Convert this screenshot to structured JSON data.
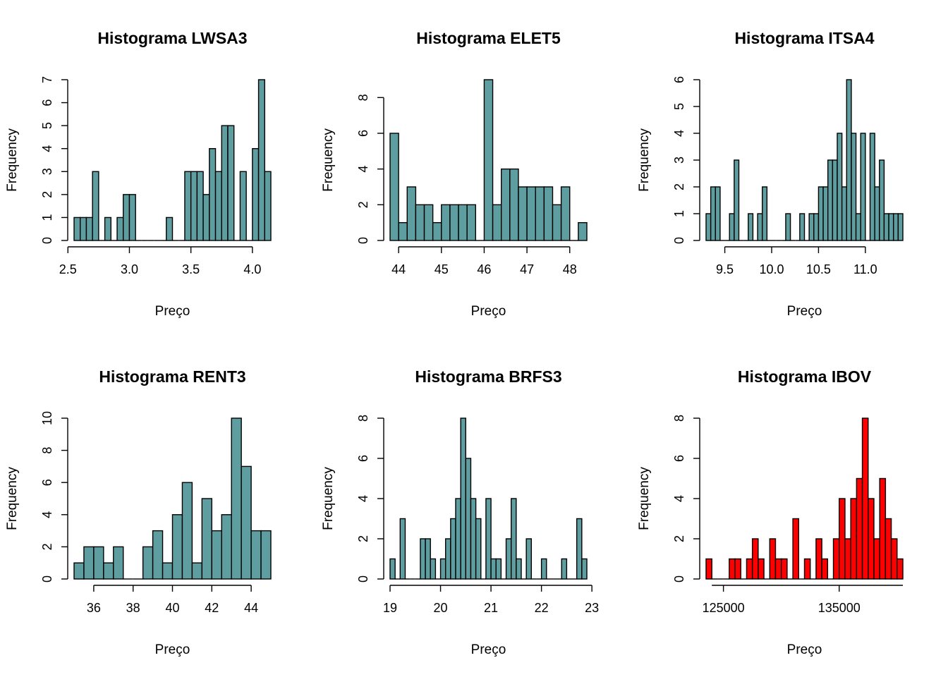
{
  "chart_data": [
    {
      "type": "histogram",
      "title": "Histograma LWSA3",
      "xlabel": "Preço",
      "ylabel": "Frequency",
      "fill_color": "#5F9EA0",
      "x_ticks": [
        "2.5",
        "3.0",
        "3.5",
        "4.0"
      ],
      "x_tick_values": [
        2.5,
        3.0,
        3.5,
        4.0
      ],
      "x_axis_range": [
        2.5,
        4.0
      ],
      "y_ticks": [
        "0",
        "1",
        "2",
        "3",
        "4",
        "5",
        "6",
        "7"
      ],
      "ylim": [
        0,
        7
      ],
      "bin_start": 2.55,
      "bin_width": 0.05,
      "counts": [
        1,
        1,
        1,
        3,
        0,
        1,
        0,
        1,
        2,
        2,
        0,
        0,
        0,
        0,
        0,
        1,
        0,
        0,
        3,
        3,
        3,
        2,
        4,
        3,
        5,
        5,
        0,
        3,
        0,
        4,
        7,
        3
      ]
    },
    {
      "type": "histogram",
      "title": "Histograma ELET5",
      "xlabel": "Preço",
      "ylabel": "Frequency",
      "fill_color": "#5F9EA0",
      "x_ticks": [
        "44",
        "45",
        "46",
        "47",
        "48"
      ],
      "x_tick_values": [
        44,
        45,
        46,
        47,
        48
      ],
      "x_axis_range": [
        44,
        48
      ],
      "y_ticks": [
        "0",
        "2",
        "4",
        "6",
        "8"
      ],
      "ylim": [
        0,
        9
      ],
      "bin_start": 43.8,
      "bin_width": 0.2,
      "counts": [
        6,
        1,
        3,
        2,
        2,
        1,
        2,
        2,
        2,
        2,
        0,
        9,
        2,
        4,
        4,
        3,
        3,
        3,
        3,
        2,
        3,
        0,
        1
      ]
    },
    {
      "type": "histogram",
      "title": "Histograma ITSA4",
      "xlabel": "Preço",
      "ylabel": "Frequency",
      "fill_color": "#5F9EA0",
      "x_ticks": [
        "9.5",
        "10.0",
        "10.5",
        "11.0"
      ],
      "x_tick_values": [
        9.5,
        10.0,
        10.5,
        11.0
      ],
      "x_axis_range": [
        9.5,
        11.0
      ],
      "y_ticks": [
        "0",
        "1",
        "2",
        "3",
        "4",
        "5",
        "6"
      ],
      "ylim": [
        0,
        6
      ],
      "bin_start": 9.3,
      "bin_width": 0.05,
      "counts": [
        1,
        2,
        2,
        0,
        0,
        1,
        3,
        0,
        0,
        1,
        0,
        1,
        2,
        0,
        0,
        0,
        0,
        1,
        0,
        0,
        1,
        0,
        1,
        1,
        2,
        2,
        3,
        3,
        4,
        2,
        6,
        4,
        1,
        4,
        0,
        4,
        2,
        3,
        1,
        1,
        1,
        1
      ]
    },
    {
      "type": "histogram",
      "title": "Histograma RENT3",
      "xlabel": "Preço",
      "ylabel": "Frequency",
      "fill_color": "#5F9EA0",
      "x_ticks": [
        "36",
        "38",
        "40",
        "42",
        "44"
      ],
      "x_tick_values": [
        36,
        38,
        40,
        42,
        44
      ],
      "x_axis_range": [
        36,
        44
      ],
      "y_ticks": [
        "0",
        "2",
        "4",
        "6",
        "8",
        "10"
      ],
      "ylim": [
        0,
        10
      ],
      "bin_start": 35.0,
      "bin_width": 0.5,
      "counts": [
        1,
        2,
        2,
        1,
        2,
        0,
        0,
        2,
        3,
        1,
        4,
        6,
        1,
        5,
        3,
        4,
        10,
        7,
        3,
        3
      ]
    },
    {
      "type": "histogram",
      "title": "Histograma BRFS3",
      "xlabel": "Preço",
      "ylabel": "Frequency",
      "fill_color": "#5F9EA0",
      "x_ticks": [
        "19",
        "20",
        "21",
        "22",
        "23"
      ],
      "x_tick_values": [
        19,
        20,
        21,
        22,
        23
      ],
      "x_axis_range": [
        19,
        23
      ],
      "y_ticks": [
        "0",
        "2",
        "4",
        "6",
        "8"
      ],
      "ylim": [
        0,
        8
      ],
      "bin_start": 19.0,
      "bin_width": 0.1,
      "counts": [
        1,
        0,
        3,
        0,
        0,
        0,
        2,
        2,
        1,
        0,
        1,
        2,
        3,
        4,
        8,
        6,
        4,
        3,
        0,
        4,
        1,
        1,
        0,
        2,
        4,
        1,
        0,
        2,
        0,
        0,
        1,
        0,
        0,
        0,
        1,
        0,
        0,
        3,
        1
      ]
    },
    {
      "type": "histogram",
      "title": "Histograma IBOV",
      "xlabel": "Preço",
      "ylabel": "Frequency",
      "fill_color": "#FF0000",
      "x_ticks": [
        "125000",
        "135000"
      ],
      "x_tick_values": [
        125000,
        135000
      ],
      "x_axis_range": [
        124000,
        140500
      ],
      "y_ticks": [
        "0",
        "2",
        "4",
        "6",
        "8"
      ],
      "ylim": [
        0,
        8
      ],
      "bin_start": 123500,
      "bin_width": 500,
      "counts": [
        1,
        0,
        0,
        0,
        1,
        1,
        0,
        1,
        2,
        1,
        0,
        2,
        1,
        1,
        0,
        3,
        0,
        1,
        0,
        2,
        1,
        0,
        2,
        4,
        2,
        4,
        5,
        8,
        4,
        2,
        5,
        3,
        2,
        1
      ]
    }
  ]
}
